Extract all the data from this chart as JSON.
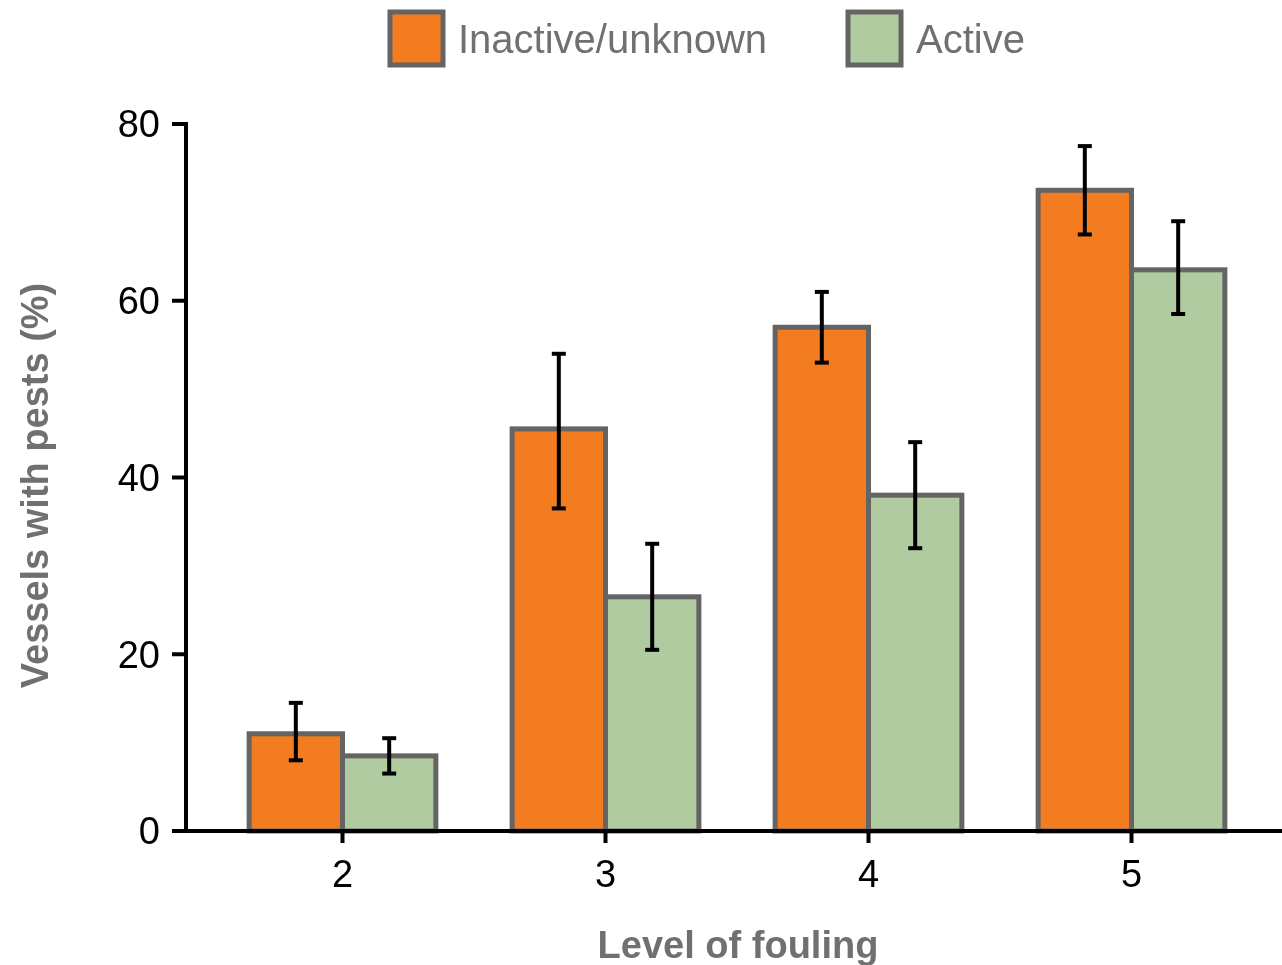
{
  "chart_data": {
    "type": "bar",
    "xlabel": "Level of fouling",
    "ylabel": "Vessels with pests (%)",
    "categories": [
      "2",
      "3",
      "4",
      "5"
    ],
    "series": [
      {
        "name": "Inactive/unknown",
        "color": "#f47c20",
        "values": [
          11,
          45.5,
          57,
          72.5
        ],
        "errors": [
          [
            8,
            14.5
          ],
          [
            36.5,
            54
          ],
          [
            53,
            61
          ],
          [
            67.5,
            77.5
          ]
        ]
      },
      {
        "name": "Active",
        "color": "#b0cba0",
        "values": [
          8.5,
          26.5,
          38,
          63.5
        ],
        "errors": [
          [
            6.5,
            10.5
          ],
          [
            20.5,
            32.5
          ],
          [
            32,
            44
          ],
          [
            58.5,
            69
          ]
        ]
      }
    ],
    "ylim": [
      0,
      80
    ],
    "yticks": [
      0,
      20,
      40,
      60,
      80
    ],
    "legend": "top",
    "grid": false
  }
}
